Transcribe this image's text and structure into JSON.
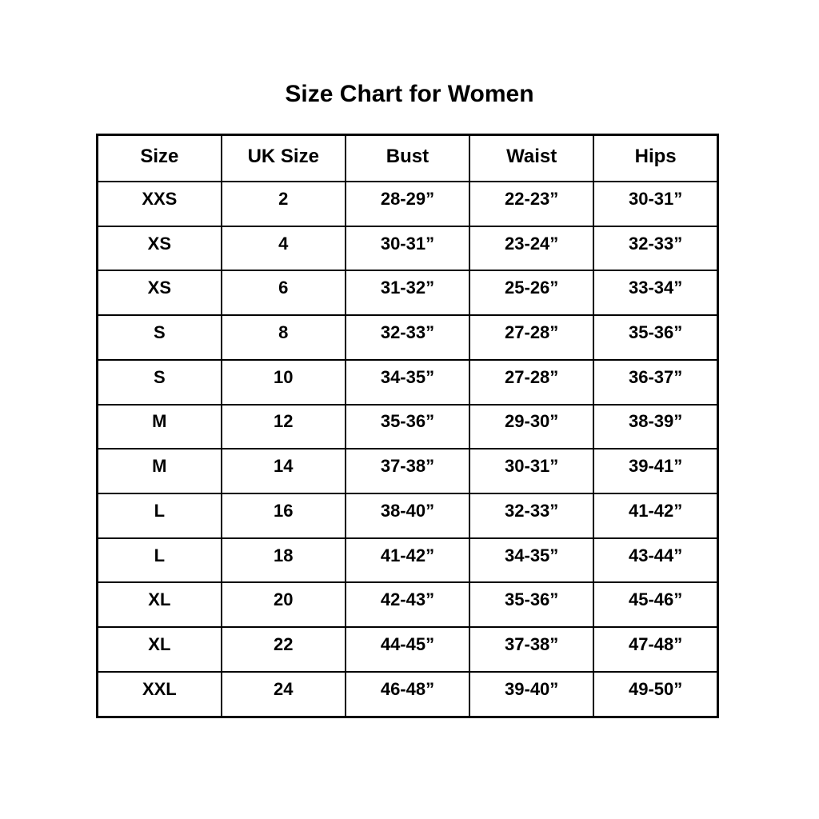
{
  "page_title": "Size Chart for Women",
  "colors": {
    "background": "#ffffff",
    "text": "#000000",
    "border": "#000000"
  },
  "chart_data": {
    "type": "table",
    "title": "Size Chart for Women",
    "columns": [
      "Size",
      "UK Size",
      "Bust",
      "Waist",
      "Hips"
    ],
    "rows": [
      [
        "XXS",
        "2",
        "28-29”",
        "22-23”",
        "30-31”"
      ],
      [
        "XS",
        "4",
        "30-31”",
        "23-24”",
        "32-33”"
      ],
      [
        "XS",
        "6",
        "31-32”",
        "25-26”",
        "33-34”"
      ],
      [
        "S",
        "8",
        "32-33”",
        "27-28”",
        "35-36”"
      ],
      [
        "S",
        "10",
        "34-35”",
        "27-28”",
        "36-37”"
      ],
      [
        "M",
        "12",
        "35-36”",
        "29-30”",
        "38-39”"
      ],
      [
        "M",
        "14",
        "37-38”",
        "30-31”",
        "39-41”"
      ],
      [
        "L",
        "16",
        "38-40”",
        "32-33”",
        "41-42”"
      ],
      [
        "L",
        "18",
        "41-42”",
        "34-35”",
        "43-44”"
      ],
      [
        "XL",
        "20",
        "42-43”",
        "35-36”",
        "45-46”"
      ],
      [
        "XL",
        "22",
        "44-45”",
        "37-38”",
        "47-48”"
      ],
      [
        "XXL",
        "24",
        "46-48”",
        "39-40”",
        "49-50”"
      ]
    ]
  }
}
